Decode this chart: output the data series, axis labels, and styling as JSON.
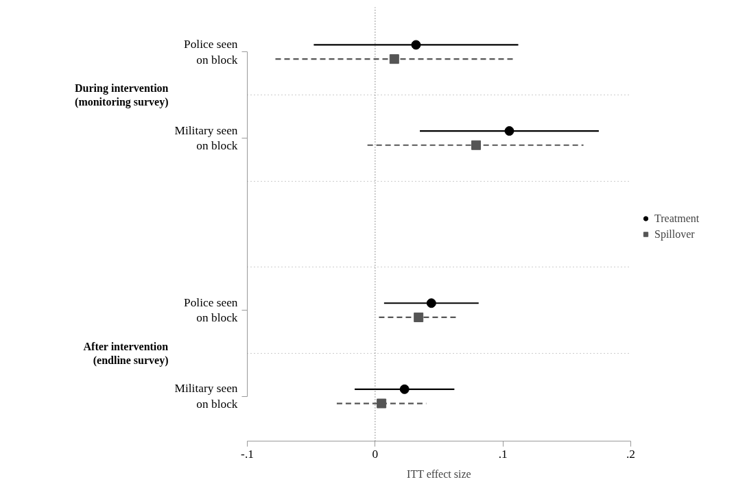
{
  "chart_data": {
    "type": "scatter",
    "orientation": "horizontal",
    "xlabel": "ITT effect size",
    "categories": [
      "Police seen\non block",
      "Military seen\non block",
      null,
      "Police seen\non block",
      "Military seen\non block"
    ],
    "series": [
      {
        "name": "Treatment",
        "color": "#000000",
        "marker": "circle",
        "line_style": "solid",
        "values": [
          0.032,
          0.105,
          null,
          0.044,
          0.023
        ],
        "errors": [
          [
            -0.048,
            0.112
          ],
          [
            0.035,
            0.175
          ],
          null,
          [
            0.007,
            0.081
          ],
          [
            -0.016,
            0.062
          ]
        ]
      },
      {
        "name": "Spillover",
        "color": "#555555",
        "marker": "square",
        "line_style": "dashed",
        "values": [
          0.015,
          0.079,
          null,
          0.034,
          0.005
        ],
        "errors": [
          [
            -0.078,
            0.108
          ],
          [
            -0.006,
            0.163
          ],
          null,
          [
            0.003,
            0.065
          ],
          [
            -0.03,
            0.04
          ]
        ]
      }
    ],
    "annotations": [
      "During intervention\n(monitoring survey)",
      "After intervention\n(endline survey)"
    ],
    "xlim": [
      -0.1,
      0.2
    ],
    "xticks": [
      {
        "value": -0.1,
        "label": "-.1"
      },
      0,
      {
        "value": 0.1,
        "label": ".1"
      },
      {
        "value": 0.2,
        "label": ".2"
      }
    ],
    "ref_lines": [
      {
        "axis": "x",
        "value": 0,
        "label": null,
        "color": "#555555",
        "line_style": "dotted"
      }
    ],
    "grid": "y",
    "legend": "right"
  }
}
